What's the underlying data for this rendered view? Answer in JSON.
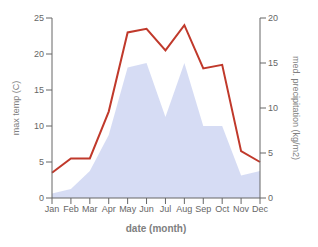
{
  "chart_data": {
    "type": "line",
    "categories": [
      "Jan",
      "Feb",
      "Mar",
      "Apr",
      "May",
      "Jun",
      "Jul",
      "Aug",
      "Sep",
      "Oct",
      "Nov",
      "Dec"
    ],
    "series": [
      {
        "type": "area",
        "color": "#c5cdf0",
        "axis": "y2",
        "values": [
          0.5,
          1.0,
          3.0,
          7.0,
          14.5,
          15.0,
          9.0,
          15.0,
          8.0,
          8.0,
          2.5,
          3.0
        ]
      },
      {
        "type": "line",
        "color": "#c0392b",
        "values": [
          3.5,
          5.5,
          5.5,
          12.0,
          23.0,
          23.5,
          20.5,
          24.0,
          18.0,
          18.5,
          6.5,
          5.0
        ]
      }
    ],
    "xlabel": "date (month)",
    "ylabel": "max temp (C)",
    "y2label": "med. precipitation (kg/m2)",
    "ylim": [
      0,
      25
    ],
    "yticks": [
      0,
      5,
      10,
      15,
      20,
      25
    ],
    "y2lim": [
      0,
      20
    ],
    "y2ticks": [
      0,
      5,
      10,
      15,
      20
    ],
    "grid": false
  }
}
